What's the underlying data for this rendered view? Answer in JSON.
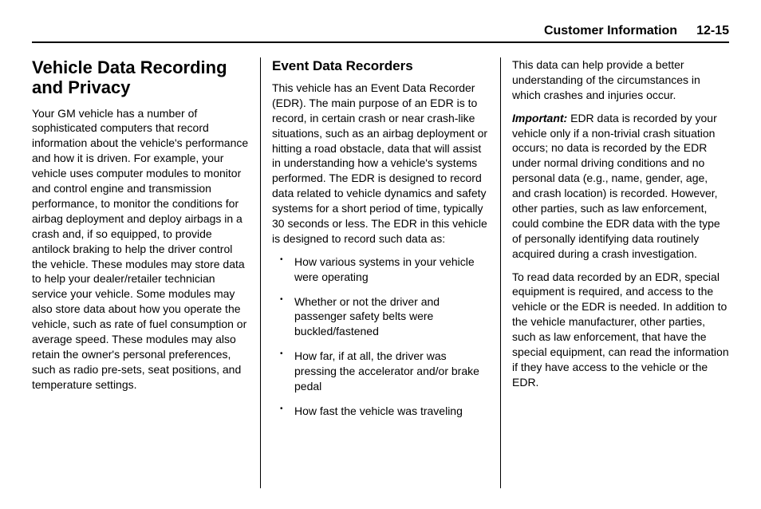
{
  "header": {
    "section": "Customer Information",
    "page": "12-15"
  },
  "col1": {
    "heading": "Vehicle Data Recording and Privacy",
    "body": "Your GM vehicle has a number of sophisticated computers that record information about the vehicle's performance and how it is driven. For example, your vehicle uses computer modules to monitor and control engine and transmission performance, to monitor the conditions for airbag deployment and deploy airbags in a crash and, if so equipped, to provide antilock braking to help the driver control the vehicle. These modules may store data to help your dealer/retailer technician service your vehicle. Some modules may also store data about how you operate the vehicle, such as rate of fuel consumption or average speed. These modules may also retain the owner's personal preferences, such as radio pre-sets, seat positions, and temperature settings."
  },
  "col2": {
    "heading": "Event Data Recorders",
    "intro": "This vehicle has an Event Data Recorder (EDR). The main purpose of an EDR is to record, in certain crash or near crash-like situations, such as an airbag deployment or hitting a road obstacle, data that will assist in understanding how a vehicle's systems performed. The EDR is designed to record data related to vehicle dynamics and safety systems for a short period of time, typically 30 seconds or less. The EDR in this vehicle is designed to record such data as:",
    "bullets": [
      "How various systems in your vehicle were operating",
      "Whether or not the driver and passenger safety belts were buckled/fastened",
      "How far, if at all, the driver was pressing the accelerator and/or brake pedal",
      "How fast the vehicle was traveling"
    ]
  },
  "col3": {
    "p1": "This data can help provide a better understanding of the circumstances in which crashes and injuries occur.",
    "important_label": "Important:",
    "important_text": " EDR data is recorded by your vehicle only if a non-trivial crash situation occurs; no data is recorded by the EDR under normal driving conditions and no personal data (e.g., name, gender, age, and crash location) is recorded. However, other parties, such as law enforcement, could combine the EDR data with the type of personally identifying data routinely acquired during a crash investigation.",
    "p3": "To read data recorded by an EDR, special equipment is required, and access to the vehicle or the EDR is needed. In addition to the vehicle manufacturer, other parties, such as law enforcement, that have the special equipment, can read the information if they have access to the vehicle or the EDR."
  },
  "style": {
    "background": "#ffffff",
    "text_color": "#000000",
    "divider_color": "#000000",
    "h1_fontsize": 22,
    "h2_fontsize": 17,
    "body_fontsize": 14,
    "line_height": 1.35
  }
}
